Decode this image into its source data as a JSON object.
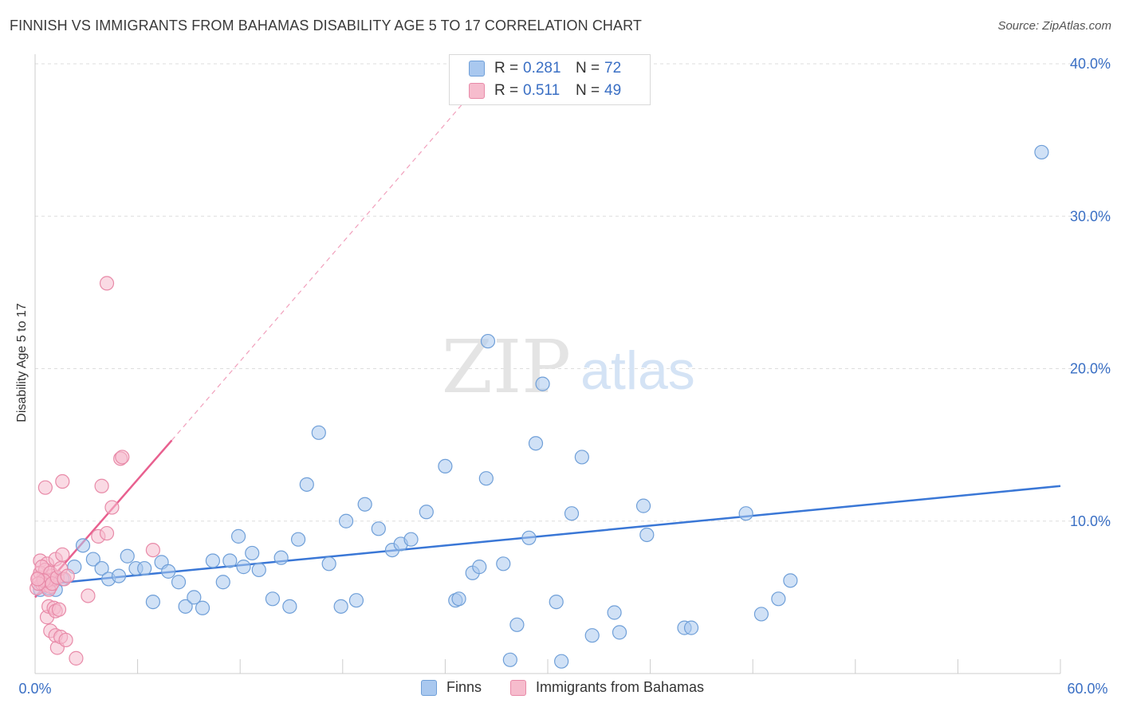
{
  "header": {
    "title": "FINNISH VS IMMIGRANTS FROM BAHAMAS DISABILITY AGE 5 TO 17 CORRELATION CHART",
    "source": "Source: ZipAtlas.com"
  },
  "watermark": {
    "zip": "ZIP",
    "atlas": "atlas"
  },
  "legend": {
    "rows": [
      {
        "r_label": "R =",
        "r_value": "0.281",
        "n_label": "N =",
        "n_value": "72",
        "color": "#a9c8ef",
        "border": "#6f9fd8"
      },
      {
        "r_label": "R =",
        "r_value": "0.511",
        "n_label": "N =",
        "n_value": "49",
        "color": "#f6bccd",
        "border": "#e88aa8"
      }
    ]
  },
  "bottom_legend": {
    "series1": "Finns",
    "series2": "Immigrants from Bahamas"
  },
  "chart_data": {
    "type": "scatter",
    "ylabel": "Disability Age 5 to 17",
    "xlim": [
      0,
      60
    ],
    "ylim": [
      0,
      40
    ],
    "x_tick_labels": {
      "min": "0.0%",
      "max": "60.0%"
    },
    "y_ticks": [
      10,
      20,
      30,
      40
    ],
    "y_tick_labels": [
      "10.0%",
      "20.0%",
      "30.0%",
      "40.0%"
    ],
    "grid": "horizontal-dashed",
    "colors": {
      "finns": "#3a77d6",
      "bahamas": "#e8608f",
      "axis_text": "#3a6fc4"
    },
    "series": [
      {
        "name": "Finns",
        "color": "#a9c8ef",
        "stroke": "#6f9fd8",
        "trend": {
          "x": [
            0,
            60
          ],
          "y": [
            5.8,
            12.3
          ],
          "style": "solid",
          "color": "#3a77d6"
        },
        "points": [
          [
            0.3,
            5.5
          ],
          [
            0.8,
            5.6
          ],
          [
            1.2,
            5.5
          ],
          [
            1.6,
            6.2
          ],
          [
            2.3,
            7.0
          ],
          [
            2.8,
            8.4
          ],
          [
            3.4,
            7.5
          ],
          [
            3.9,
            6.9
          ],
          [
            4.3,
            6.2
          ],
          [
            4.9,
            6.4
          ],
          [
            5.4,
            7.7
          ],
          [
            5.9,
            6.9
          ],
          [
            6.4,
            6.9
          ],
          [
            6.9,
            4.7
          ],
          [
            7.4,
            7.3
          ],
          [
            7.8,
            6.7
          ],
          [
            8.4,
            6.0
          ],
          [
            8.8,
            4.4
          ],
          [
            9.3,
            5.0
          ],
          [
            9.8,
            4.3
          ],
          [
            10.4,
            7.4
          ],
          [
            11.0,
            6.0
          ],
          [
            11.4,
            7.4
          ],
          [
            11.9,
            9.0
          ],
          [
            12.2,
            7.0
          ],
          [
            12.7,
            7.9
          ],
          [
            13.1,
            6.8
          ],
          [
            13.9,
            4.9
          ],
          [
            14.4,
            7.6
          ],
          [
            14.9,
            4.4
          ],
          [
            15.4,
            8.8
          ],
          [
            15.9,
            12.4
          ],
          [
            16.6,
            15.8
          ],
          [
            17.2,
            7.2
          ],
          [
            17.9,
            4.4
          ],
          [
            18.2,
            10.0
          ],
          [
            18.8,
            4.8
          ],
          [
            19.3,
            11.1
          ],
          [
            20.1,
            9.5
          ],
          [
            20.9,
            8.1
          ],
          [
            21.4,
            8.5
          ],
          [
            22.0,
            8.8
          ],
          [
            22.9,
            10.6
          ],
          [
            24.0,
            13.6
          ],
          [
            24.6,
            4.8
          ],
          [
            24.8,
            4.9
          ],
          [
            25.6,
            6.6
          ],
          [
            26.0,
            7.0
          ],
          [
            26.4,
            12.8
          ],
          [
            26.5,
            21.8
          ],
          [
            27.4,
            7.2
          ],
          [
            27.8,
            0.9
          ],
          [
            28.2,
            3.2
          ],
          [
            28.9,
            8.9
          ],
          [
            29.3,
            15.1
          ],
          [
            29.7,
            19.0
          ],
          [
            30.5,
            4.7
          ],
          [
            30.8,
            0.8
          ],
          [
            31.4,
            10.5
          ],
          [
            32.0,
            14.2
          ],
          [
            32.6,
            2.5
          ],
          [
            33.9,
            4.0
          ],
          [
            34.2,
            2.7
          ],
          [
            35.6,
            11.0
          ],
          [
            35.8,
            9.1
          ],
          [
            38.0,
            3.0
          ],
          [
            38.4,
            3.0
          ],
          [
            41.6,
            10.5
          ],
          [
            42.5,
            3.9
          ],
          [
            43.5,
            4.9
          ],
          [
            44.2,
            6.1
          ],
          [
            58.9,
            34.2
          ]
        ]
      },
      {
        "name": "Immigrants from Bahamas",
        "color": "#f6bccd",
        "stroke": "#e88aa8",
        "trend": {
          "x": [
            0,
            8
          ],
          "y": [
            5.0,
            15.3
          ],
          "style": "solid",
          "color": "#e8608f",
          "extension": {
            "x": [
              8,
              25.5
            ],
            "y": [
              15.3,
              38.0
            ],
            "style": "dashed"
          }
        },
        "points": [
          [
            0.1,
            5.6
          ],
          [
            0.2,
            6.3
          ],
          [
            0.3,
            7.4
          ],
          [
            0.4,
            5.9
          ],
          [
            0.5,
            6.3
          ],
          [
            0.6,
            5.8
          ],
          [
            0.7,
            7.2
          ],
          [
            0.8,
            6.0
          ],
          [
            0.9,
            5.7
          ],
          [
            1.0,
            6.4
          ],
          [
            0.3,
            6.6
          ],
          [
            0.6,
            6.8
          ],
          [
            0.8,
            5.5
          ],
          [
            1.1,
            6.2
          ],
          [
            1.2,
            7.5
          ],
          [
            0.4,
            7.0
          ],
          [
            0.7,
            6.1
          ],
          [
            0.9,
            6.6
          ],
          [
            0.5,
            6.1
          ],
          [
            0.2,
            5.9
          ],
          [
            1.0,
            5.9
          ],
          [
            1.3,
            6.3
          ],
          [
            0.6,
            12.2
          ],
          [
            0.7,
            3.7
          ],
          [
            0.8,
            4.4
          ],
          [
            0.9,
            2.8
          ],
          [
            1.1,
            4.3
          ],
          [
            1.2,
            4.1
          ],
          [
            1.3,
            1.7
          ],
          [
            1.2,
            2.5
          ],
          [
            1.4,
            4.2
          ],
          [
            1.5,
            2.4
          ],
          [
            1.5,
            6.9
          ],
          [
            1.6,
            12.6
          ],
          [
            1.6,
            7.8
          ],
          [
            1.7,
            6.2
          ],
          [
            1.8,
            2.2
          ],
          [
            1.9,
            6.4
          ],
          [
            2.4,
            1.0
          ],
          [
            3.1,
            5.1
          ],
          [
            3.7,
            9.0
          ],
          [
            3.9,
            12.3
          ],
          [
            4.2,
            9.2
          ],
          [
            4.5,
            10.9
          ],
          [
            4.2,
            25.6
          ],
          [
            5.0,
            14.1
          ],
          [
            5.1,
            14.2
          ],
          [
            6.9,
            8.1
          ],
          [
            0.15,
            6.2
          ]
        ]
      }
    ]
  }
}
